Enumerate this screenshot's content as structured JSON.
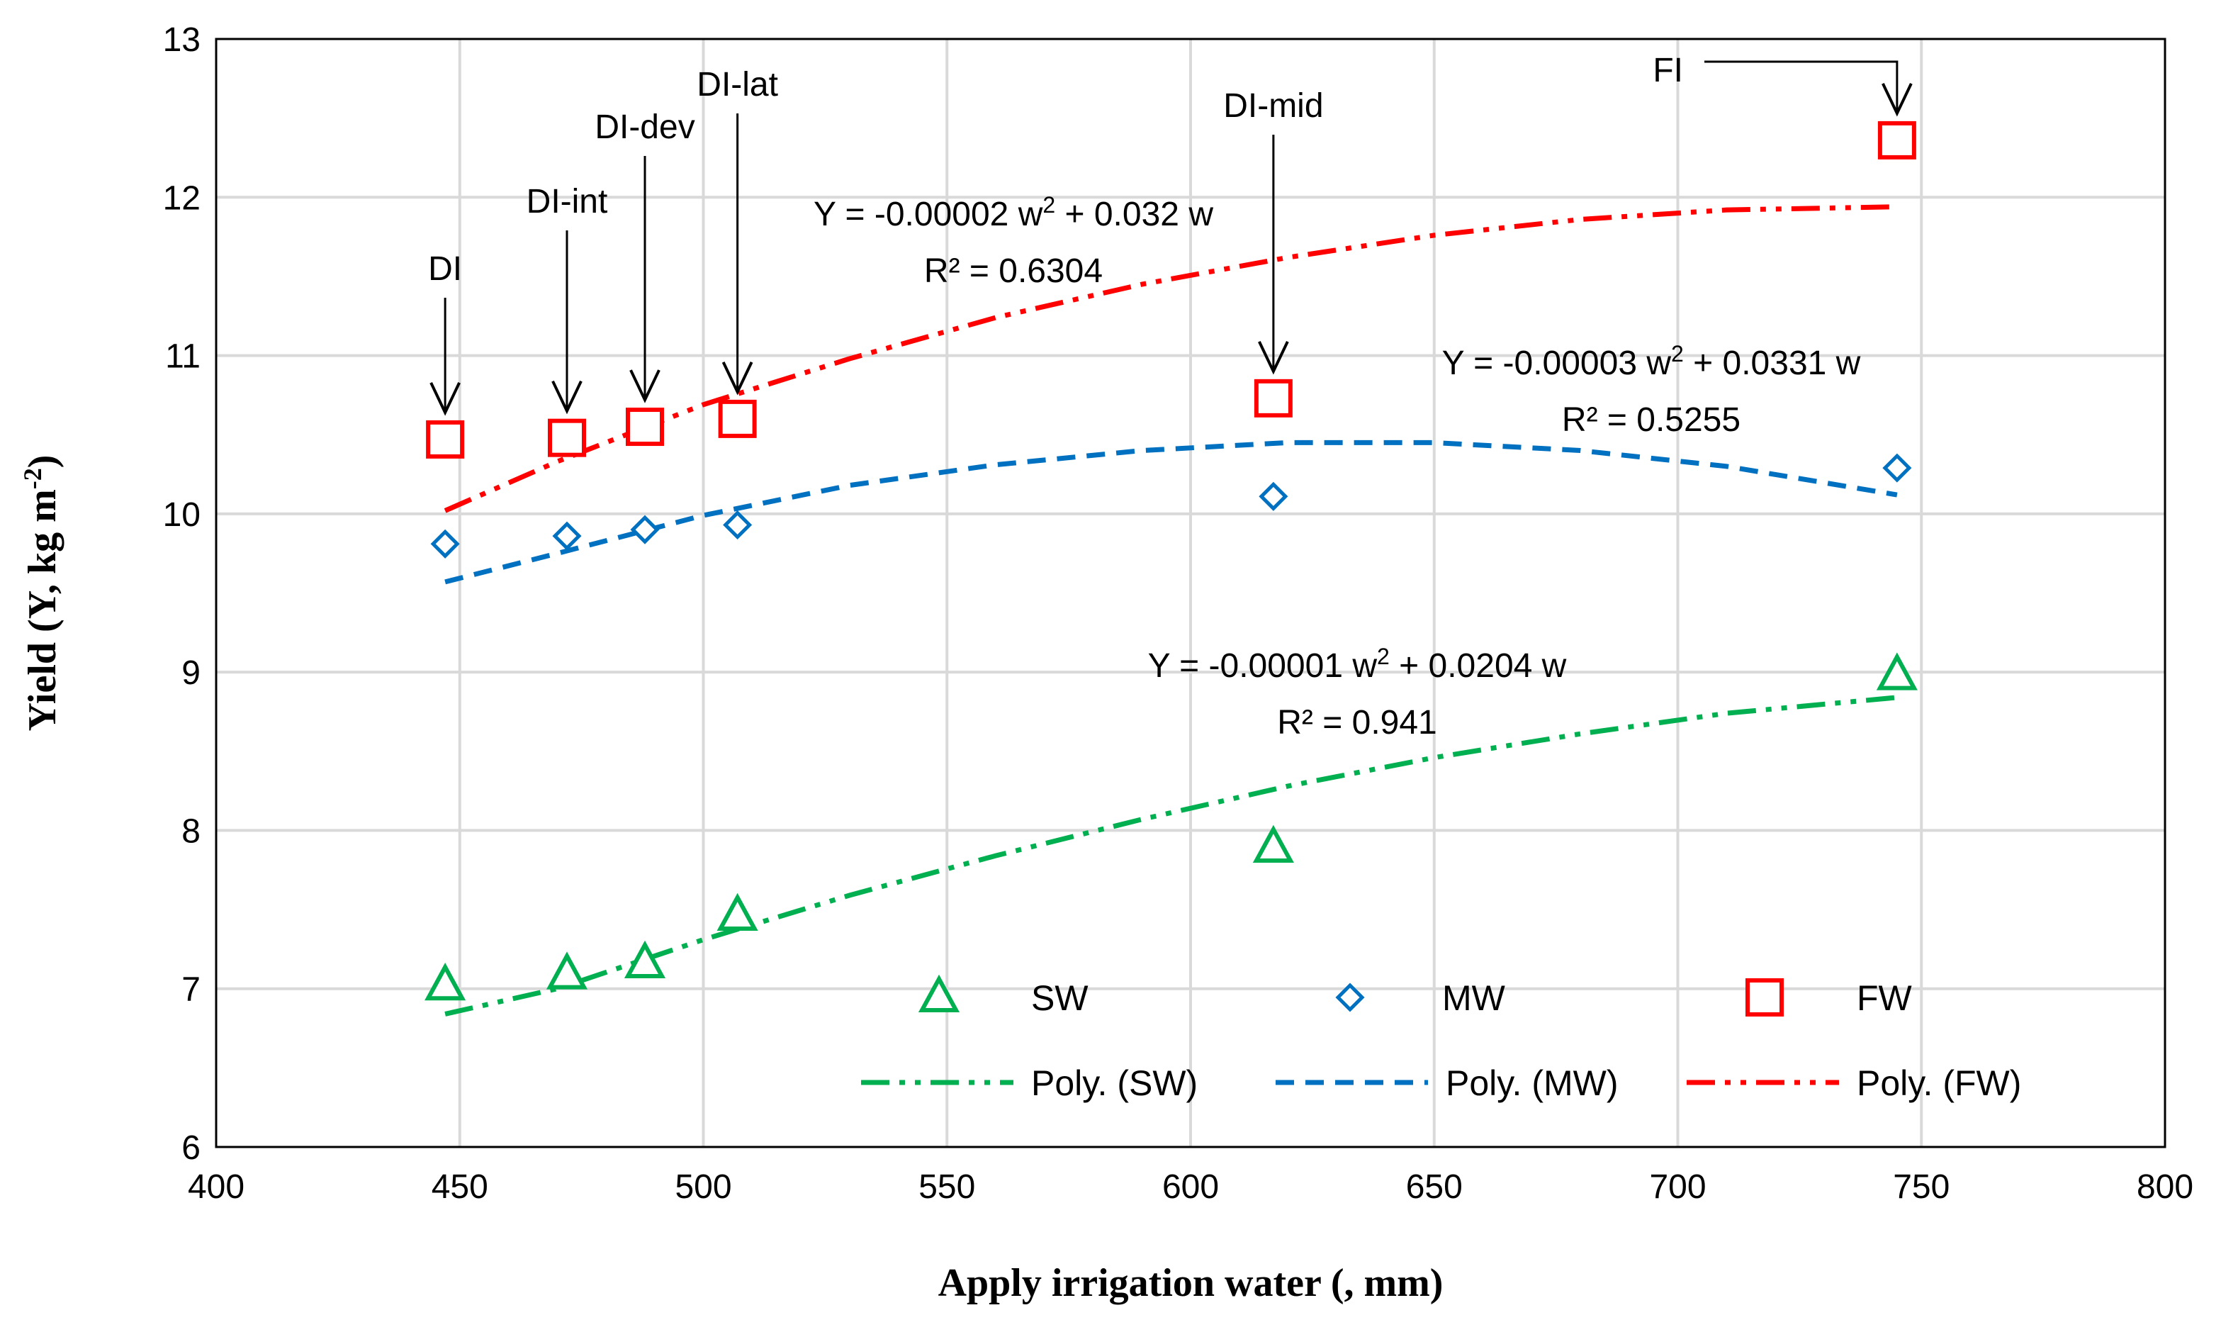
{
  "chart_data": {
    "type": "scatter",
    "xlabel": "Apply irrigation water (, mm)",
    "ylabel_main": "Yield (Y, kg m",
    "ylabel_sup": "-2",
    "ylabel_close": ")",
    "xlim": [
      400,
      800
    ],
    "ylim": [
      6,
      13
    ],
    "x_ticks": [
      400,
      450,
      500,
      550,
      600,
      650,
      700,
      750,
      800
    ],
    "y_ticks": [
      6,
      7,
      8,
      9,
      10,
      11,
      12,
      13
    ],
    "grid": true,
    "series": [
      {
        "name": "SW",
        "marker": "triangle",
        "color": "#00B050",
        "x": [
          447,
          472,
          488,
          507,
          617,
          745
        ],
        "y": [
          7.02,
          7.09,
          7.16,
          7.46,
          7.89,
          8.98
        ]
      },
      {
        "name": "MW",
        "marker": "diamond",
        "color": "#0070C0",
        "x": [
          447,
          472,
          488,
          507,
          617,
          745
        ],
        "y": [
          9.81,
          9.86,
          9.9,
          9.93,
          10.11,
          10.29
        ]
      },
      {
        "name": "FW",
        "marker": "square",
        "color": "#FF0000",
        "x": [
          447,
          472,
          488,
          507,
          617,
          745
        ],
        "y": [
          10.47,
          10.48,
          10.55,
          10.6,
          10.73,
          12.36
        ]
      }
    ],
    "trendlines": [
      {
        "name": "Poly. (SW)",
        "color": "#00B050",
        "dash": "dash-dot-dot",
        "x": [
          447,
          470,
          500,
          530,
          560,
          590,
          620,
          650,
          680,
          710,
          745
        ],
        "y": [
          6.84,
          7.0,
          7.31,
          7.59,
          7.84,
          8.07,
          8.28,
          8.46,
          8.61,
          8.74,
          8.84
        ]
      },
      {
        "name": "Poly. (MW)",
        "color": "#0070C0",
        "dash": "dash",
        "x": [
          447,
          470,
          500,
          530,
          560,
          590,
          620,
          650,
          680,
          710,
          745
        ],
        "y": [
          9.57,
          9.75,
          9.99,
          10.18,
          10.31,
          10.4,
          10.45,
          10.45,
          10.4,
          10.3,
          10.12
        ]
      },
      {
        "name": "Poly. (FW)",
        "color": "#FF0000",
        "dash": "dash-dot-dot",
        "x": [
          447,
          470,
          500,
          530,
          560,
          590,
          620,
          650,
          680,
          710,
          745
        ],
        "y": [
          10.02,
          10.33,
          10.69,
          10.98,
          11.24,
          11.45,
          11.62,
          11.76,
          11.86,
          11.92,
          11.94
        ]
      }
    ],
    "equations": [
      {
        "series": "FW",
        "line1_a": "Y = -0.00002 w",
        "line1_sup": "2",
        "line1_b": " + 0.032 w",
        "line2": "R² = 0.6304"
      },
      {
        "series": "MW",
        "line1_a": "Y = -0.00003 w",
        "line1_sup": "2",
        "line1_b": " + 0.0331 w",
        "line2": "R² = 0.5255"
      },
      {
        "series": "SW",
        "line1_a": "Y = -0.00001 w",
        "line1_sup": "2",
        "line1_b": " + 0.0204 w",
        "line2": "R² = 0.941"
      }
    ],
    "annotations": [
      {
        "label": "DI",
        "x": 447
      },
      {
        "label": "DI-int",
        "x": 472
      },
      {
        "label": "DI-dev",
        "x": 488
      },
      {
        "label": "DI-lat",
        "x": 507
      },
      {
        "label": "DI-mid",
        "x": 617
      },
      {
        "label": "FI",
        "x": 745
      }
    ],
    "legend": {
      "position": "bottom-right",
      "markers": [
        "SW",
        "MW",
        "FW"
      ],
      "lines": [
        "Poly. (SW)",
        "Poly. (MW)",
        "Poly. (FW)"
      ]
    }
  }
}
